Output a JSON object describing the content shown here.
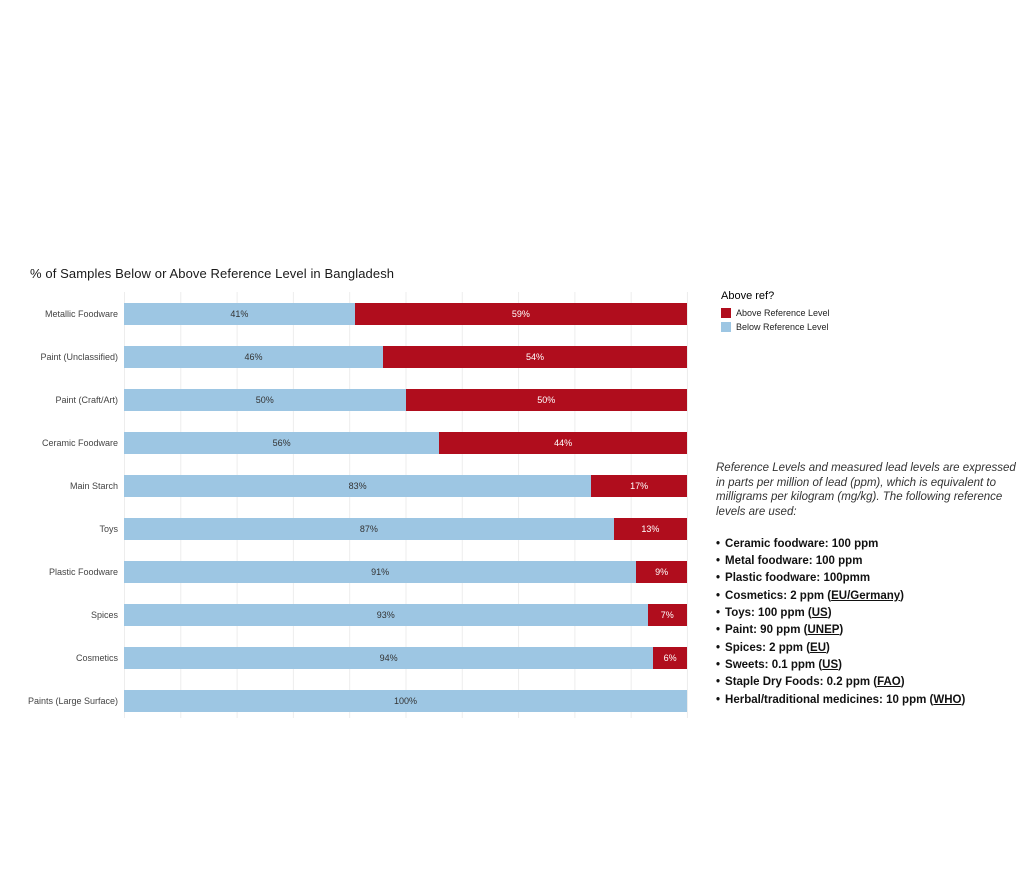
{
  "title": "% of Samples Below or Above Reference Level in Bangladesh",
  "colors": {
    "below": "#9dc6e3",
    "above": "#b00d1d",
    "gridline": "#ededed"
  },
  "chart_data": {
    "type": "bar",
    "orientation": "horizontal",
    "stacked": true,
    "grid": "vertical",
    "xlim": [
      0,
      100
    ],
    "value_suffix": "%",
    "title": "% of Samples Below or Above Reference Level in Bangladesh",
    "categories": [
      "Metallic Foodware",
      "Paint (Unclassified)",
      "Paint (Craft/Art)",
      "Ceramic Foodware",
      "Main Starch",
      "Toys",
      "Plastic Foodware",
      "Spices",
      "Cosmetics",
      "Paints (Large Surface)"
    ],
    "series": [
      {
        "name": "Below Reference Level",
        "color": "#9dc6e3",
        "values": [
          41,
          46,
          50,
          56,
          83,
          87,
          91,
          93,
          94,
          100
        ]
      },
      {
        "name": "Above Reference Level",
        "color": "#b00d1d",
        "values": [
          59,
          54,
          50,
          44,
          17,
          13,
          9,
          7,
          6,
          0
        ]
      }
    ]
  },
  "legend": {
    "title": "Above ref?",
    "entries": [
      {
        "label": "Above Reference Level",
        "color": "#b00d1d"
      },
      {
        "label": "Below Reference Level",
        "color": "#9dc6e3"
      }
    ]
  },
  "notes": {
    "paragraph": "Reference Levels and measured lead levels are expressed in parts per million of lead (ppm), which is equivalent to milligrams per kilogram (mg/kg). The following reference levels are used:",
    "items": [
      {
        "pre": "Ceramic foodware: 100 ppm",
        "u": "",
        "post": ""
      },
      {
        "pre": "Metal foodware: 100 ppm",
        "u": "",
        "post": ""
      },
      {
        "pre": "Plastic foodware: 100pmm",
        "u": "",
        "post": ""
      },
      {
        "pre": "Cosmetics: 2 ppm (",
        "u": "EU/Germany",
        "post": ")"
      },
      {
        "pre": "Toys: 100 ppm (",
        "u": "US",
        "post": ")"
      },
      {
        "pre": "Paint: 90 ppm (",
        "u": "UNEP",
        "post": ")"
      },
      {
        "pre": "Spices: 2 ppm (",
        "u": "EU",
        "post": ")"
      },
      {
        "pre": "Sweets: 0.1 ppm (",
        "u": "US",
        "post": ")"
      },
      {
        "pre": "Staple Dry Foods: 0.2 ppm (",
        "u": "FAO",
        "post": ")"
      },
      {
        "pre": "Herbal/traditional medicines: 10 ppm (",
        "u": "WHO",
        "post": ")"
      }
    ]
  }
}
